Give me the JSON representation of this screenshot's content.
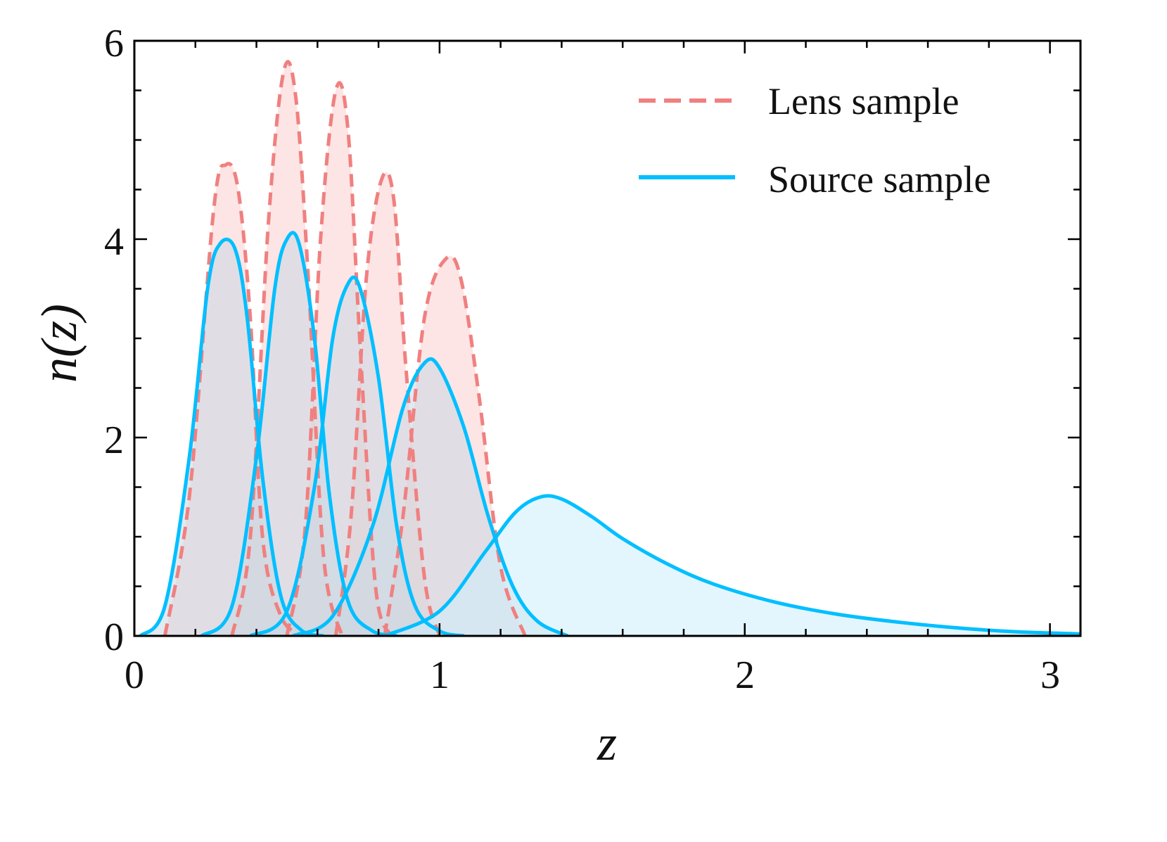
{
  "chart_data": {
    "type": "area",
    "xlabel": "z",
    "ylabel": "n(z)",
    "xlim": [
      0,
      3.1
    ],
    "ylim": [
      0,
      6
    ],
    "x_ticks": [
      0,
      1,
      2,
      3
    ],
    "x_tick_labels": [
      "0",
      "1",
      "2",
      "3"
    ],
    "y_ticks": [
      0,
      2,
      4,
      6
    ],
    "y_tick_labels": [
      "0",
      "2",
      "4",
      "6"
    ],
    "grid": false,
    "legend_position": "top-right",
    "legend": [
      {
        "label": "Lens sample",
        "style": "dashed",
        "color": "#f08080"
      },
      {
        "label": "Source sample",
        "style": "solid",
        "color": "#00bfff"
      }
    ],
    "series": [
      {
        "group": "Lens sample",
        "color": "#f08080",
        "fill": "#f9c6c4",
        "x": [
          0.1,
          0.18,
          0.26,
          0.3,
          0.34,
          0.38,
          0.42,
          0.48,
          0.55
        ],
        "y": [
          0,
          1.4,
          4.3,
          4.75,
          4.5,
          3.2,
          1.0,
          0.2,
          0
        ]
      },
      {
        "group": "Lens sample",
        "color": "#f08080",
        "fill": "#f9c6c4",
        "x": [
          0.32,
          0.38,
          0.44,
          0.49,
          0.53,
          0.57,
          0.62,
          0.68
        ],
        "y": [
          0,
          1.0,
          4.2,
          5.7,
          5.4,
          3.6,
          0.8,
          0
        ]
      },
      {
        "group": "Lens sample",
        "color": "#f08080",
        "fill": "#f9c6c4",
        "x": [
          0.5,
          0.56,
          0.61,
          0.66,
          0.7,
          0.74,
          0.79,
          0.84
        ],
        "y": [
          0,
          1.1,
          4.0,
          5.5,
          5.1,
          2.9,
          0.5,
          0
        ]
      },
      {
        "group": "Lens sample",
        "color": "#f08080",
        "fill": "#f9c6c4",
        "x": [
          0.66,
          0.71,
          0.76,
          0.81,
          0.85,
          0.89,
          0.95,
          1.0
        ],
        "y": [
          0,
          1.2,
          3.6,
          4.6,
          4.4,
          2.7,
          0.6,
          0
        ]
      },
      {
        "group": "Lens sample",
        "color": "#f08080",
        "fill": "#f9c6c4",
        "x": [
          0.82,
          0.88,
          0.95,
          1.02,
          1.07,
          1.13,
          1.2,
          1.28
        ],
        "y": [
          0,
          1.2,
          3.2,
          3.8,
          3.6,
          2.4,
          0.7,
          0
        ]
      },
      {
        "group": "Source sample",
        "color": "#00bfff",
        "fill": "#c8d8e4",
        "x": [
          0.02,
          0.1,
          0.18,
          0.24,
          0.28,
          0.33,
          0.37,
          0.42,
          0.48,
          0.55,
          0.62
        ],
        "y": [
          0,
          0.3,
          1.8,
          3.5,
          3.95,
          3.9,
          3.2,
          1.6,
          0.4,
          0.05,
          0
        ]
      },
      {
        "group": "Source sample",
        "color": "#00bfff",
        "fill": "#c8d8e4",
        "x": [
          0.22,
          0.32,
          0.4,
          0.46,
          0.5,
          0.54,
          0.59,
          0.64,
          0.7,
          0.78,
          0.86
        ],
        "y": [
          0,
          0.3,
          1.8,
          3.5,
          4.0,
          3.95,
          3.0,
          1.4,
          0.35,
          0.05,
          0
        ]
      },
      {
        "group": "Source sample",
        "color": "#00bfff",
        "fill": "#c8d8e4",
        "x": [
          0.38,
          0.5,
          0.59,
          0.65,
          0.7,
          0.74,
          0.8,
          0.86,
          0.92,
          1.0,
          1.08
        ],
        "y": [
          0,
          0.25,
          1.5,
          3.0,
          3.55,
          3.5,
          2.6,
          1.1,
          0.3,
          0.05,
          0
        ]
      },
      {
        "group": "Source sample",
        "color": "#00bfff",
        "fill": "#c8d8e4",
        "x": [
          0.52,
          0.65,
          0.78,
          0.88,
          0.95,
          1.0,
          1.08,
          1.16,
          1.24,
          1.32,
          1.42
        ],
        "y": [
          0,
          0.2,
          1.1,
          2.3,
          2.75,
          2.7,
          2.1,
          1.2,
          0.5,
          0.15,
          0
        ]
      },
      {
        "group": "Source sample",
        "color": "#00bfff",
        "fill": "#cdeefb",
        "x": [
          0.82,
          1.0,
          1.15,
          1.25,
          1.33,
          1.4,
          1.5,
          1.6,
          1.75,
          1.9,
          2.1,
          2.3,
          2.5,
          2.7,
          2.9,
          3.1
        ],
        "y": [
          0,
          0.25,
          0.85,
          1.25,
          1.4,
          1.38,
          1.2,
          0.98,
          0.72,
          0.52,
          0.34,
          0.22,
          0.14,
          0.08,
          0.04,
          0.02
        ]
      }
    ]
  }
}
